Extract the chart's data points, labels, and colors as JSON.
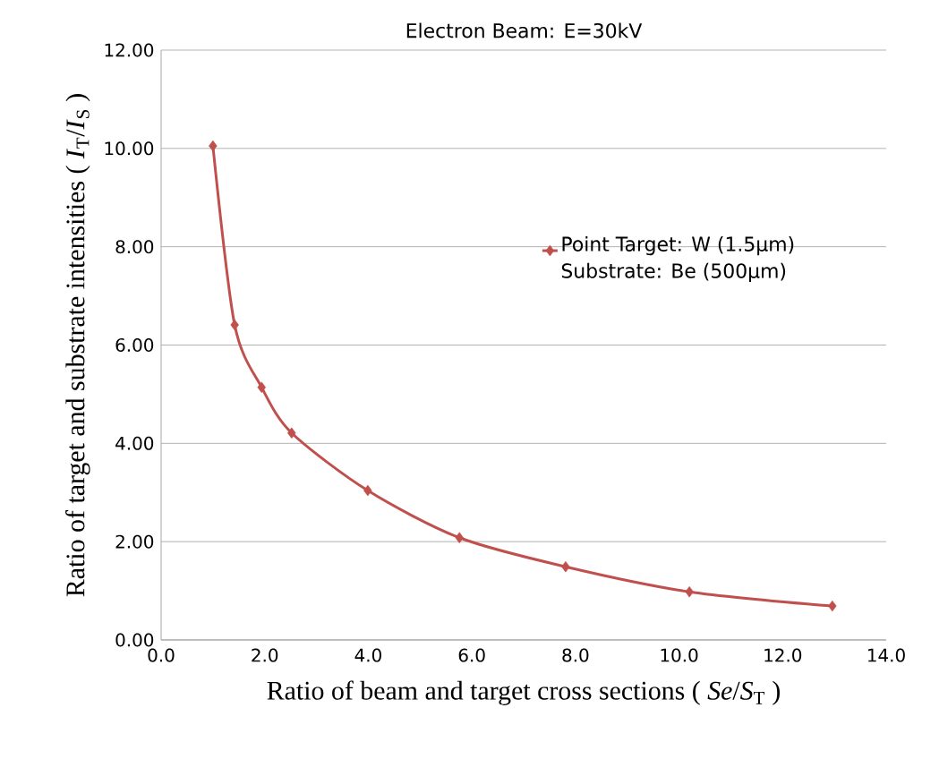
{
  "chart_data": {
    "type": "line",
    "title": "Electron Beam: E=30kV",
    "xlabel": "Ratio of beam and target cross sections ( *Se*/*S*$_{T}$ )",
    "ylabel": "Ratio of target and substrate intensities ( *I*$_{T}$/*I*$_{S}$ )",
    "series": [
      {
        "name": "Point Target: W (1.5μm) Substrate: Be (500μm)",
        "color": "#c0504d",
        "x": [
          1.0,
          1.42,
          1.94,
          2.52,
          3.99,
          5.76,
          7.81,
          10.2,
          12.96
        ],
        "values": [
          10.05,
          6.41,
          5.14,
          4.21,
          3.04,
          2.08,
          1.49,
          0.98,
          0.69
        ]
      }
    ],
    "xlim": [
      0,
      14
    ],
    "ylim": [
      0,
      12
    ],
    "xticks": [
      {
        "value": 0,
        "label": "0.0"
      },
      {
        "value": 2,
        "label": "2.0"
      },
      {
        "value": 4,
        "label": "4.0"
      },
      {
        "value": 6,
        "label": "6.0"
      },
      {
        "value": 8,
        "label": "8.0"
      },
      {
        "value": 10,
        "label": "10.0"
      },
      {
        "value": 12,
        "label": "12.0"
      },
      {
        "value": 14,
        "label": "14.0"
      }
    ],
    "yticks": [
      {
        "value": 0,
        "label": "0.00"
      },
      {
        "value": 2,
        "label": "2.00"
      },
      {
        "value": 4,
        "label": "4.00"
      },
      {
        "value": 6,
        "label": "6.00"
      },
      {
        "value": 8,
        "label": "8.00"
      },
      {
        "value": 10,
        "label": "10.00"
      },
      {
        "value": 12,
        "label": "12.00"
      }
    ],
    "grid": "y",
    "legend": "right",
    "marker": "diamond",
    "line_style": "solid"
  }
}
